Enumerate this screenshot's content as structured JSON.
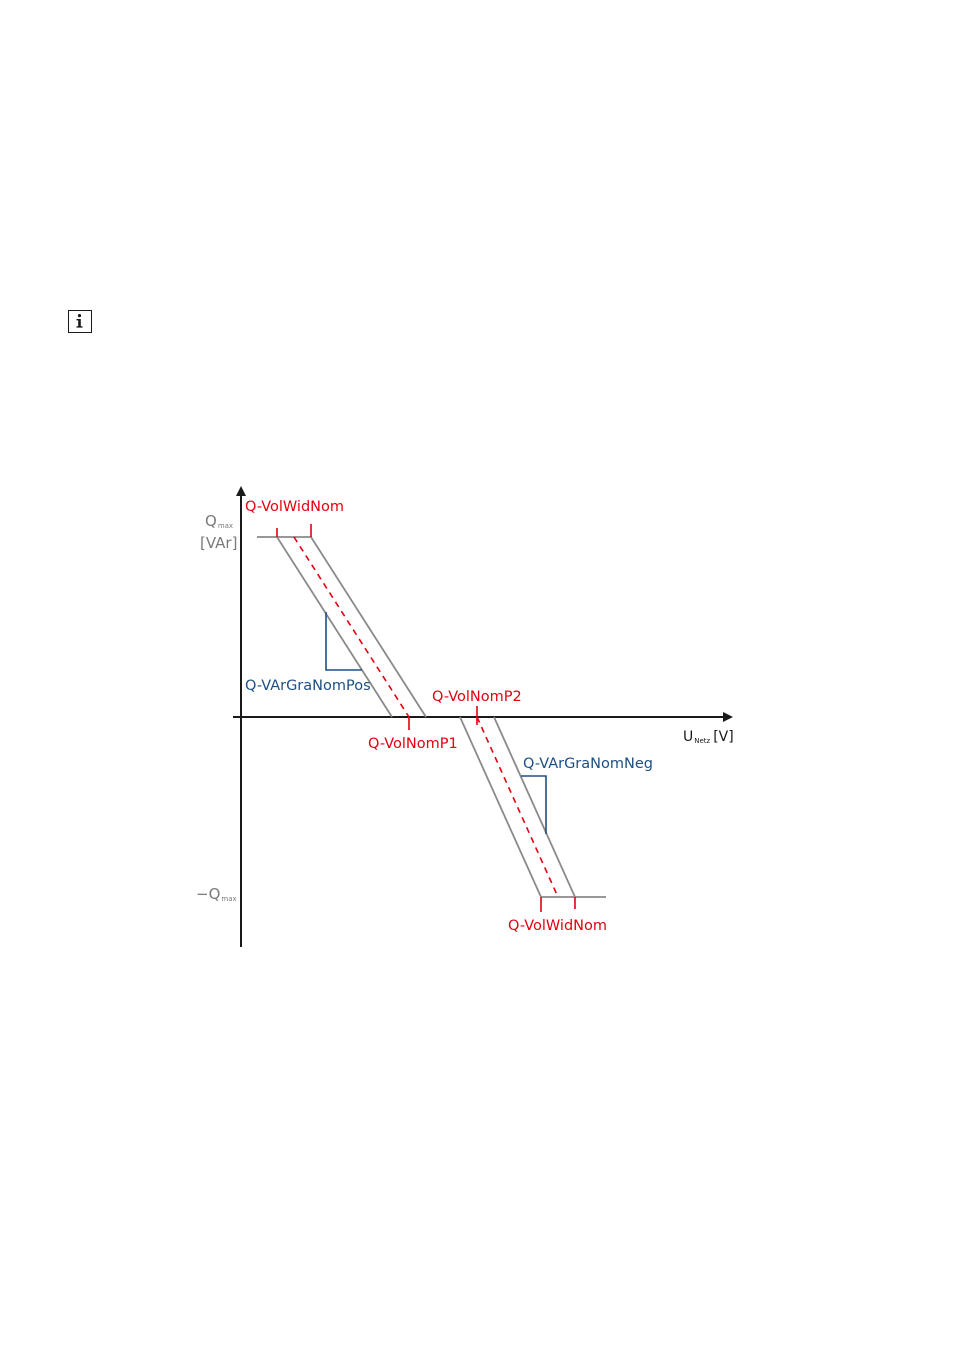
{
  "icons": {
    "info": "info-icon"
  },
  "diagram": {
    "y_axis": {
      "top_label": {
        "main": "Q",
        "sub": "max"
      },
      "unit": "[VAr]",
      "bottom_label": {
        "main": "−Q",
        "sub": "max"
      }
    },
    "x_axis": {
      "main": "U",
      "sub": "Netz",
      "unit": "[V]"
    },
    "labels": {
      "vol_wid_nom_top": "Q-VolWidNom",
      "vol_wid_nom_bottom": "Q-VolWidNom",
      "vol_nom_p1": "Q-VolNomP1",
      "vol_nom_p2": "Q-VolNomP2",
      "var_gra_nom_pos": "Q-VArGraNomPos",
      "var_gra_nom_neg": "Q-VArGraNomNeg"
    },
    "colors": {
      "red": "#e3000f",
      "blue": "#1d4f85",
      "gray": "#7a7a7a",
      "axis": "#1a1a1a"
    }
  }
}
